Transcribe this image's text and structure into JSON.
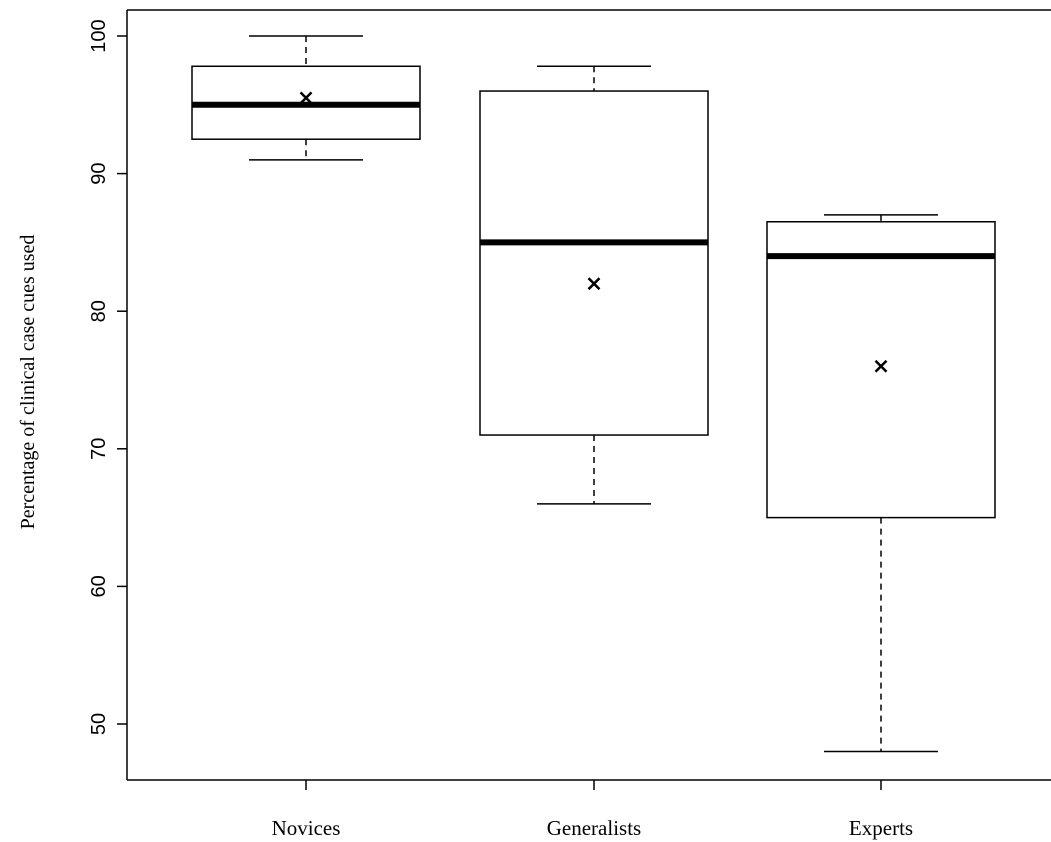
{
  "chart_data": {
    "type": "boxplot",
    "title": "",
    "xlabel": "",
    "ylabel": "Percentage of clinical case cues used",
    "ylim": [
      46,
      102
    ],
    "yticks": [
      50,
      60,
      70,
      80,
      90,
      100
    ],
    "grid": false,
    "categories": [
      "Novices",
      "Generalists",
      "Experts"
    ],
    "boxes": [
      {
        "name": "Novices",
        "min": 91,
        "q1": 92.5,
        "median": 95,
        "q3": 97.8,
        "max": 100,
        "mean": 95.5
      },
      {
        "name": "Generalists",
        "min": 66,
        "q1": 71,
        "median": 85,
        "q3": 96,
        "max": 97.8,
        "mean": 82
      },
      {
        "name": "Experts",
        "min": 48,
        "q1": 65,
        "median": 84,
        "q3": 86.5,
        "max": 87,
        "mean": 76
      }
    ],
    "mean_marker": "x"
  }
}
